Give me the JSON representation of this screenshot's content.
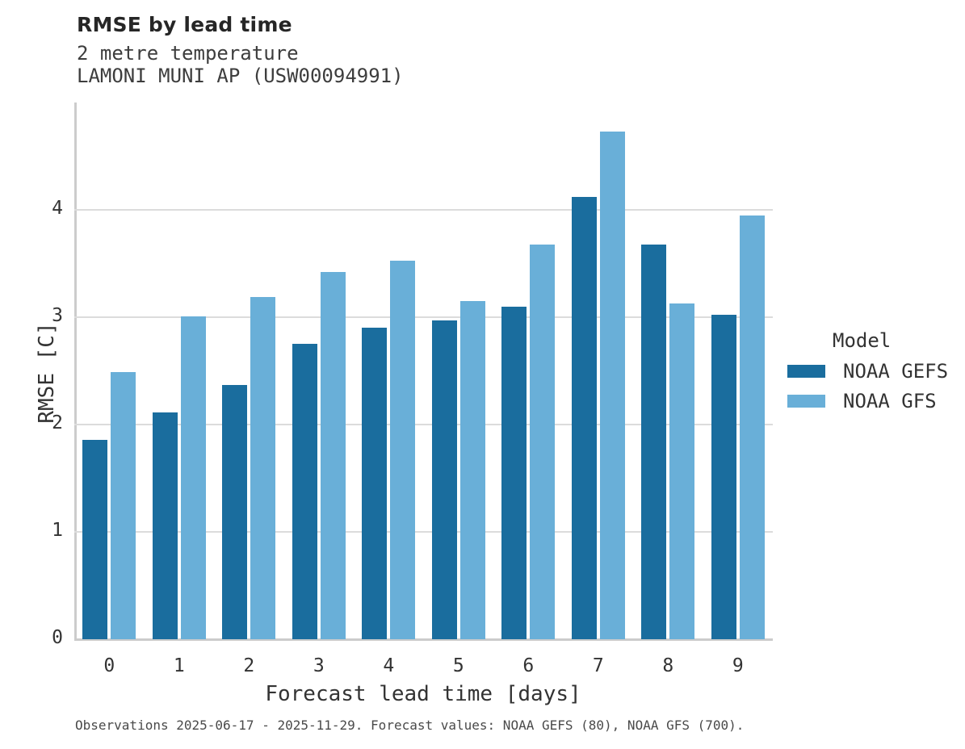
{
  "header": {
    "title": "RMSE by lead time",
    "subtitle_line1": "2 metre temperature",
    "subtitle_line2": "LAMONI MUNI AP (USW00094991)"
  },
  "legend": {
    "title": "Model",
    "entries": [
      {
        "label": "NOAA GEFS",
        "color": "#1a6d9e"
      },
      {
        "label": "NOAA GFS",
        "color": "#69afd8"
      }
    ]
  },
  "footer": {
    "note": "Observations 2025-06-17 - 2025-11-29. Forecast values: NOAA GEFS (80), NOAA GFS (700)."
  },
  "colors": {
    "gefs_dark_blue": "#1a6d9e",
    "gfs_light_blue": "#69afd8",
    "gridline_gray": "#dcdcdc",
    "axis_spine_gray": "#cccccc"
  },
  "chart_data": {
    "type": "bar",
    "title": "RMSE by lead time",
    "subtitle": [
      "2 metre temperature",
      "LAMONI MUNI AP (USW00094991)"
    ],
    "categories": [
      "0",
      "1",
      "2",
      "3",
      "4",
      "5",
      "6",
      "7",
      "8",
      "9"
    ],
    "series": [
      {
        "name": "NOAA GEFS",
        "color": "#1a6d9e",
        "values": [
          1.86,
          2.11,
          2.37,
          2.75,
          2.9,
          2.97,
          3.1,
          4.12,
          3.68,
          3.02
        ]
      },
      {
        "name": "NOAA GFS",
        "color": "#69afd8",
        "values": [
          2.49,
          3.01,
          3.19,
          3.42,
          3.53,
          3.15,
          3.68,
          4.73,
          3.13,
          3.95
        ]
      }
    ],
    "xlabel": "Forecast lead time [days]",
    "ylabel": "RMSE [C]",
    "ylim": [
      0,
      5
    ],
    "yticks": [
      0,
      1,
      2,
      3,
      4
    ],
    "grid": true,
    "legend_position": "right",
    "footnote": "Observations 2025-06-17 - 2025-11-29. Forecast values: NOAA GEFS (80), NOAA GFS (700)."
  }
}
